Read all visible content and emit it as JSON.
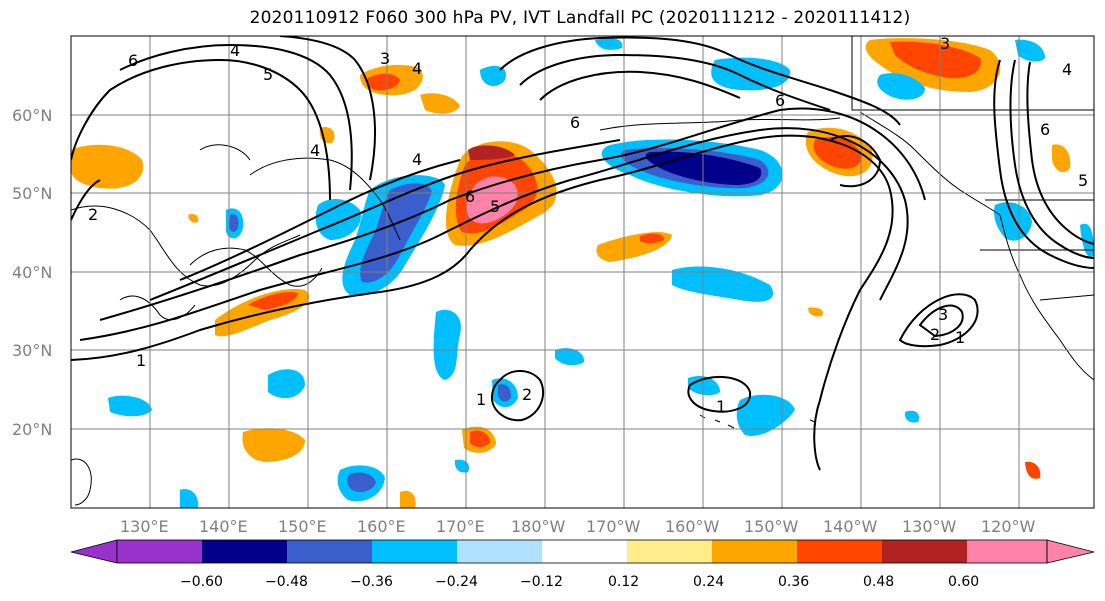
{
  "title": "2020110912 F060 300 hPa PV, IVT Landfall PC (2020111212 - 2020111412)",
  "lat_labels": [
    "60°N",
    "50°N",
    "40°N",
    "30°N",
    "20°N"
  ],
  "lon_labels": [
    "130°E",
    "140°E",
    "150°E",
    "160°E",
    "170°E",
    "180°W",
    "170°W",
    "160°W",
    "150°W",
    "140°W",
    "130°W",
    "120°W"
  ],
  "contour_labels": [
    "1",
    "2",
    "3",
    "4",
    "5",
    "6"
  ],
  "colorbar": {
    "ticks": [
      "−0.60",
      "−0.48",
      "−0.36",
      "−0.24",
      "−0.12",
      "0.12",
      "0.24",
      "0.36",
      "0.48",
      "0.60"
    ],
    "colors": [
      "#9932cc",
      "#00008b",
      "#3a5fcd",
      "#00bfff",
      "#b0e2ff",
      "#ffffff",
      "#ffec8b",
      "#ffa500",
      "#ff4500",
      "#b22222",
      "#ff82ab"
    ]
  },
  "colors": {
    "grid": "#808080",
    "contour": "#000000",
    "coast": "#000000"
  }
}
